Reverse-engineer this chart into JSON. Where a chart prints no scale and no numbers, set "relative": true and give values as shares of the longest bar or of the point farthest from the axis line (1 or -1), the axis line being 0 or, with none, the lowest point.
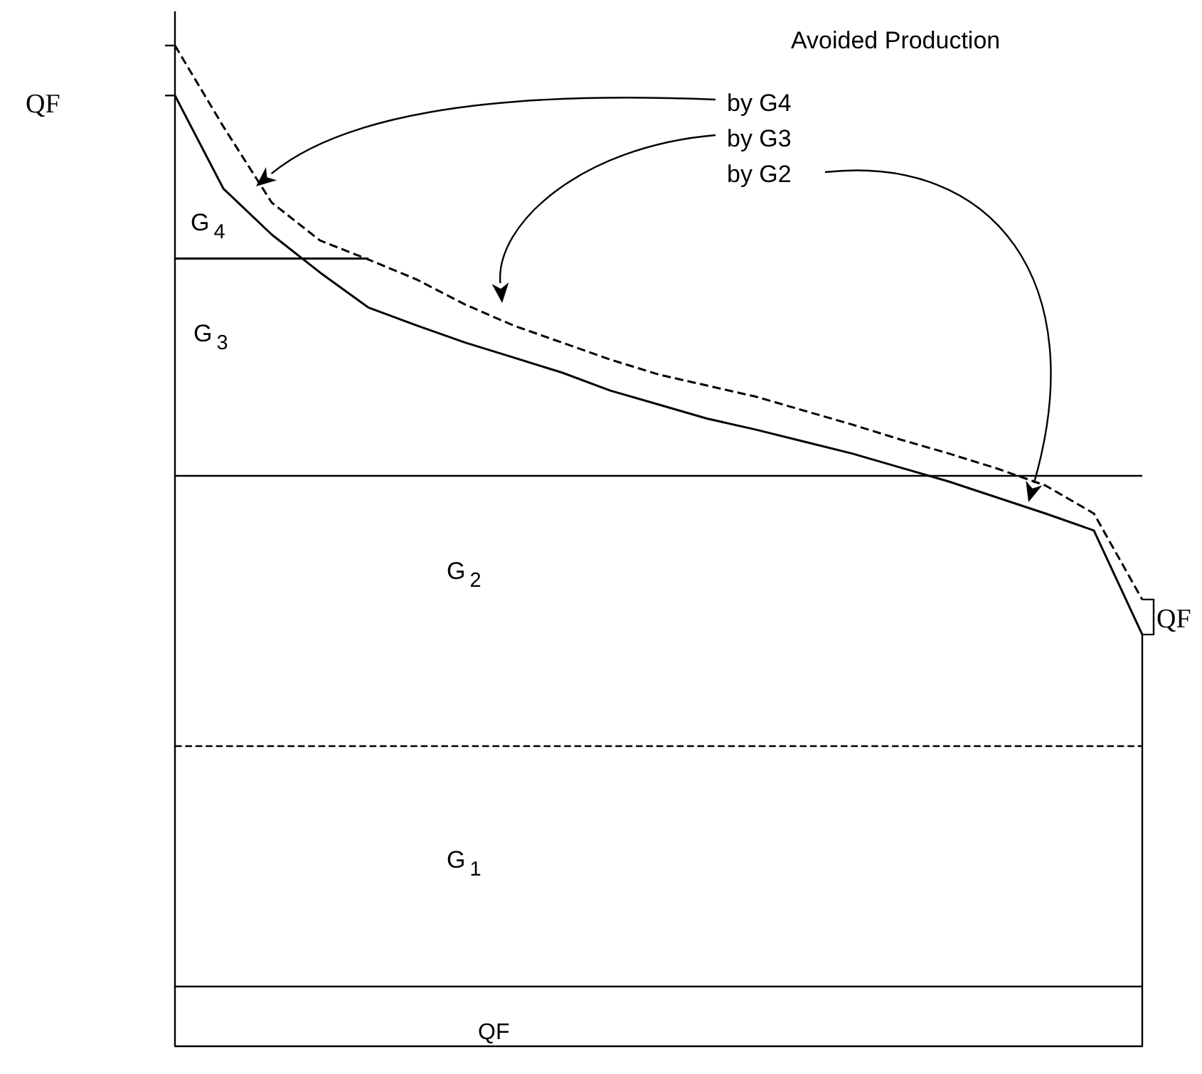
{
  "chart_data": {
    "type": "line",
    "relative": true,
    "marker": "none",
    "categories": [
      null,
      null,
      null,
      null,
      null,
      null,
      null,
      null,
      null,
      null,
      null,
      null,
      null,
      null,
      null,
      null,
      null,
      null,
      null,
      null,
      null
    ],
    "series": [
      {
        "color": "#000000",
        "line_style": "dashed",
        "values": [
          1.0,
          0.919,
          0.843,
          0.805,
          0.786,
          0.766,
          0.741,
          0.72,
          0.703,
          0.686,
          0.671,
          0.66,
          0.649,
          0.635,
          0.621,
          0.606,
          0.592,
          0.577,
          0.56,
          0.532,
          0.446
        ]
      },
      {
        "color": "#000000",
        "line_style": "solid",
        "values": [
          0.95,
          0.857,
          0.811,
          0.773,
          0.738,
          0.72,
          0.703,
          0.688,
          0.673,
          0.655,
          0.641,
          0.627,
          0.616,
          0.604,
          0.592,
          0.578,
          0.564,
          0.548,
          0.532,
          0.515,
          0.411
        ]
      },
      {
        "color": "#000000",
        "line_style": "solid",
        "values": [
          0.787,
          0.787,
          0.787,
          0.787,
          0.787,
          null,
          null,
          null,
          null,
          null,
          null,
          null,
          null,
          null,
          null,
          null,
          null,
          null,
          null,
          null,
          null
        ]
      }
    ],
    "ref_lines": [
      {
        "axis": "y",
        "value": 0.567,
        "color": "#000000",
        "line_style": "solid"
      },
      {
        "axis": "y",
        "value": 0.297,
        "color": "#000000",
        "line_style": "dashed"
      },
      {
        "axis": "y",
        "value": 0.058,
        "color": "#000000",
        "line_style": "solid"
      }
    ],
    "annotations": [
      "G$_{4}$",
      "G$_{3}$",
      "G$_{2}$",
      "G$_{1}$",
      "QF",
      "QF",
      "QF",
      "Avoided Production",
      "by G4",
      "by G3",
      "by G2"
    ]
  }
}
